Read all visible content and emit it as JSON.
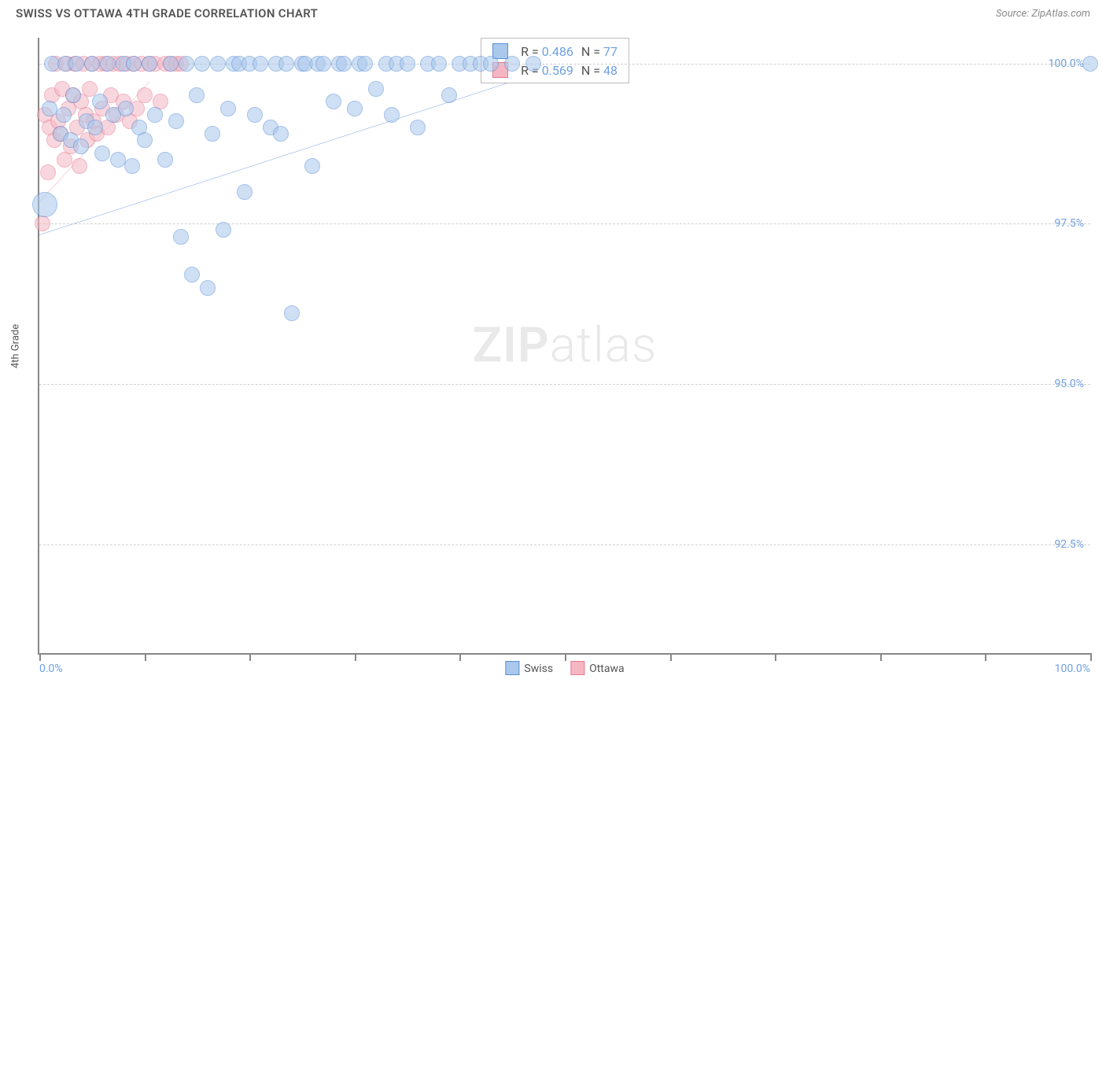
{
  "title": "SWISS VS OTTAWA 4TH GRADE CORRELATION CHART",
  "source": "Source: ZipAtlas.com",
  "ylabel": "4th Grade",
  "watermark_zip": "ZIP",
  "watermark_atlas": "atlas",
  "chart": {
    "type": "scatter",
    "background_color": "#ffffff",
    "grid_color": "#d0d0d0",
    "axis_color": "#888888",
    "xlim": [
      0,
      100
    ],
    "ylim": [
      90.8,
      100.4
    ],
    "x_ticks": [
      0,
      10,
      20,
      30,
      40,
      50,
      60,
      70,
      80,
      90,
      100
    ],
    "x_tick_labels_show": [
      0,
      100
    ],
    "x_tick_label_fmt": [
      "0.0%",
      "100.0%"
    ],
    "y_gridlines": [
      92.5,
      95.0,
      97.5,
      100.0
    ],
    "y_tick_labels": [
      "92.5%",
      "95.0%",
      "97.5%",
      "100.0%"
    ],
    "tick_label_color": "#6fa0e0",
    "tick_label_fontsize": 14,
    "series": [
      {
        "name": "Swiss",
        "marker_fill": "#a9c8ec",
        "marker_stroke": "#5b8fd6",
        "marker_fill_opacity": 0.55,
        "marker_radius": 10,
        "line_color": "#3c78d8",
        "line_width": 2,
        "R": 0.486,
        "N": 77,
        "trend": {
          "x1": 0,
          "y1": 98.6,
          "x2": 45,
          "y2": 100.0
        },
        "points": [
          {
            "x": 0.5,
            "y": 97.8,
            "r": 16
          },
          {
            "x": 1,
            "y": 99.3
          },
          {
            "x": 1.2,
            "y": 100
          },
          {
            "x": 2,
            "y": 98.9
          },
          {
            "x": 2.3,
            "y": 99.2
          },
          {
            "x": 2.5,
            "y": 100
          },
          {
            "x": 3,
            "y": 98.8
          },
          {
            "x": 3.2,
            "y": 99.5
          },
          {
            "x": 3.5,
            "y": 100
          },
          {
            "x": 4,
            "y": 98.7
          },
          {
            "x": 4.5,
            "y": 99.1
          },
          {
            "x": 5,
            "y": 100
          },
          {
            "x": 5.3,
            "y": 99.0
          },
          {
            "x": 5.8,
            "y": 99.4
          },
          {
            "x": 6,
            "y": 98.6
          },
          {
            "x": 6.5,
            "y": 100
          },
          {
            "x": 7,
            "y": 99.2
          },
          {
            "x": 7.5,
            "y": 98.5
          },
          {
            "x": 8,
            "y": 100
          },
          {
            "x": 8.2,
            "y": 99.3
          },
          {
            "x": 8.8,
            "y": 98.4
          },
          {
            "x": 9,
            "y": 100
          },
          {
            "x": 9.5,
            "y": 99.0
          },
          {
            "x": 10,
            "y": 98.8
          },
          {
            "x": 10.5,
            "y": 100
          },
          {
            "x": 11,
            "y": 99.2
          },
          {
            "x": 12,
            "y": 98.5
          },
          {
            "x": 12.5,
            "y": 100
          },
          {
            "x": 13,
            "y": 99.1
          },
          {
            "x": 13.5,
            "y": 97.3
          },
          {
            "x": 14,
            "y": 100
          },
          {
            "x": 14.5,
            "y": 96.7
          },
          {
            "x": 15,
            "y": 99.5
          },
          {
            "x": 15.5,
            "y": 100
          },
          {
            "x": 16,
            "y": 96.5
          },
          {
            "x": 16.5,
            "y": 98.9
          },
          {
            "x": 17,
            "y": 100
          },
          {
            "x": 17.5,
            "y": 97.4
          },
          {
            "x": 18,
            "y": 99.3
          },
          {
            "x": 18.5,
            "y": 100
          },
          {
            "x": 19,
            "y": 100
          },
          {
            "x": 19.5,
            "y": 98.0
          },
          {
            "x": 20,
            "y": 100
          },
          {
            "x": 20.5,
            "y": 99.2
          },
          {
            "x": 21,
            "y": 100
          },
          {
            "x": 22,
            "y": 99.0
          },
          {
            "x": 22.5,
            "y": 100
          },
          {
            "x": 23,
            "y": 98.9
          },
          {
            "x": 23.5,
            "y": 100
          },
          {
            "x": 24,
            "y": 96.1
          },
          {
            "x": 25,
            "y": 100
          },
          {
            "x": 25.3,
            "y": 100
          },
          {
            "x": 26,
            "y": 98.4
          },
          {
            "x": 26.5,
            "y": 100
          },
          {
            "x": 27,
            "y": 100
          },
          {
            "x": 28,
            "y": 99.4
          },
          {
            "x": 28.5,
            "y": 100
          },
          {
            "x": 29,
            "y": 100
          },
          {
            "x": 30,
            "y": 99.3
          },
          {
            "x": 30.5,
            "y": 100
          },
          {
            "x": 31,
            "y": 100
          },
          {
            "x": 32,
            "y": 99.6
          },
          {
            "x": 33,
            "y": 100
          },
          {
            "x": 33.5,
            "y": 99.2
          },
          {
            "x": 34,
            "y": 100
          },
          {
            "x": 35,
            "y": 100
          },
          {
            "x": 36,
            "y": 99.0
          },
          {
            "x": 37,
            "y": 100
          },
          {
            "x": 38,
            "y": 100
          },
          {
            "x": 39,
            "y": 99.5
          },
          {
            "x": 40,
            "y": 100
          },
          {
            "x": 41,
            "y": 100
          },
          {
            "x": 42,
            "y": 100
          },
          {
            "x": 43,
            "y": 100
          },
          {
            "x": 45,
            "y": 100
          },
          {
            "x": 47,
            "y": 100
          },
          {
            "x": 100,
            "y": 100
          }
        ]
      },
      {
        "name": "Ottawa",
        "marker_fill": "#f4b6c2",
        "marker_stroke": "#e77a92",
        "marker_fill_opacity": 0.55,
        "marker_radius": 10,
        "line_color": "#e05a7a",
        "line_width": 2,
        "R": 0.569,
        "N": 48,
        "trend": {
          "x1": 0,
          "y1": 98.9,
          "x2": 10.5,
          "y2": 100.0
        },
        "points": [
          {
            "x": 0.3,
            "y": 97.5
          },
          {
            "x": 0.5,
            "y": 99.2
          },
          {
            "x": 0.8,
            "y": 98.3
          },
          {
            "x": 1,
            "y": 99.0
          },
          {
            "x": 1.2,
            "y": 99.5
          },
          {
            "x": 1.4,
            "y": 98.8
          },
          {
            "x": 1.6,
            "y": 100
          },
          {
            "x": 1.8,
            "y": 99.1
          },
          {
            "x": 2,
            "y": 98.9
          },
          {
            "x": 2.2,
            "y": 99.6
          },
          {
            "x": 2.4,
            "y": 98.5
          },
          {
            "x": 2.6,
            "y": 100
          },
          {
            "x": 2.8,
            "y": 99.3
          },
          {
            "x": 3,
            "y": 98.7
          },
          {
            "x": 3.2,
            "y": 99.5
          },
          {
            "x": 3.4,
            "y": 100
          },
          {
            "x": 3.6,
            "y": 99.0
          },
          {
            "x": 3.8,
            "y": 98.4
          },
          {
            "x": 4,
            "y": 99.4
          },
          {
            "x": 4.2,
            "y": 100
          },
          {
            "x": 4.4,
            "y": 99.2
          },
          {
            "x": 4.6,
            "y": 98.8
          },
          {
            "x": 4.8,
            "y": 99.6
          },
          {
            "x": 5,
            "y": 100
          },
          {
            "x": 5.2,
            "y": 99.1
          },
          {
            "x": 5.5,
            "y": 98.9
          },
          {
            "x": 5.8,
            "y": 100
          },
          {
            "x": 6,
            "y": 99.3
          },
          {
            "x": 6.3,
            "y": 100
          },
          {
            "x": 6.5,
            "y": 99.0
          },
          {
            "x": 6.8,
            "y": 99.5
          },
          {
            "x": 7,
            "y": 100
          },
          {
            "x": 7.3,
            "y": 99.2
          },
          {
            "x": 7.6,
            "y": 100
          },
          {
            "x": 8,
            "y": 99.4
          },
          {
            "x": 8.3,
            "y": 100
          },
          {
            "x": 8.6,
            "y": 99.1
          },
          {
            "x": 9,
            "y": 100
          },
          {
            "x": 9.3,
            "y": 99.3
          },
          {
            "x": 9.7,
            "y": 100
          },
          {
            "x": 10,
            "y": 99.5
          },
          {
            "x": 10.5,
            "y": 100
          },
          {
            "x": 11,
            "y": 100
          },
          {
            "x": 11.5,
            "y": 99.4
          },
          {
            "x": 12,
            "y": 100
          },
          {
            "x": 12.5,
            "y": 100
          },
          {
            "x": 13,
            "y": 100
          },
          {
            "x": 13.5,
            "y": 100
          }
        ]
      }
    ],
    "legend_box": {
      "left_pct": 42,
      "top_pct": 0
    },
    "bottom_legend": [
      {
        "label": "Swiss",
        "fill": "#a9c8ec",
        "stroke": "#5b8fd6"
      },
      {
        "label": "Ottawa",
        "fill": "#f4b6c2",
        "stroke": "#e77a92"
      }
    ]
  }
}
